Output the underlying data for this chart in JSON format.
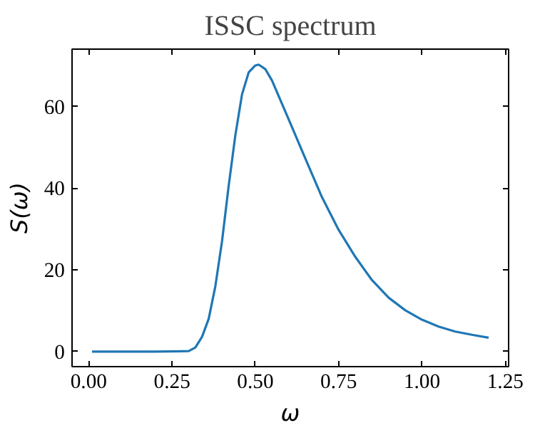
{
  "chart_data": {
    "type": "line",
    "title": "ISSC spectrum",
    "xlabel": "ω",
    "ylabel": "S(ω)",
    "x": [
      0.01,
      0.1,
      0.2,
      0.3,
      0.32,
      0.34,
      0.36,
      0.38,
      0.4,
      0.42,
      0.44,
      0.46,
      0.48,
      0.5,
      0.51,
      0.53,
      0.55,
      0.6,
      0.65,
      0.7,
      0.75,
      0.8,
      0.85,
      0.9,
      0.95,
      1.0,
      1.05,
      1.1,
      1.15,
      1.2
    ],
    "series": [
      {
        "color": "#1f77b4",
        "values": [
          0,
          0,
          0,
          0.1,
          1,
          3.6,
          8,
          16,
          27,
          40.6,
          53,
          63,
          68.4,
          70.1,
          70.3,
          69.2,
          66.4,
          56.9,
          47.3,
          37.8,
          29.8,
          23.2,
          17.5,
          13.2,
          10.1,
          7.8,
          6.1,
          4.9,
          4.1,
          3.4
        ]
      }
    ],
    "xlim": [
      -0.05,
      1.26
    ],
    "ylim": [
      -3.7,
      74.1
    ],
    "xticks": [
      {
        "value": 0,
        "label": "0.00"
      },
      {
        "value": 0.25,
        "label": "0.25"
      },
      {
        "value": 0.5,
        "label": "0.50"
      },
      {
        "value": 0.75,
        "label": "0.75"
      },
      {
        "value": 1,
        "label": "1.00"
      },
      {
        "value": 1.25,
        "label": "1.25"
      }
    ],
    "yticks": [
      0,
      20,
      40,
      60
    ],
    "grid": false,
    "marker": "none",
    "line_style": "solid"
  }
}
